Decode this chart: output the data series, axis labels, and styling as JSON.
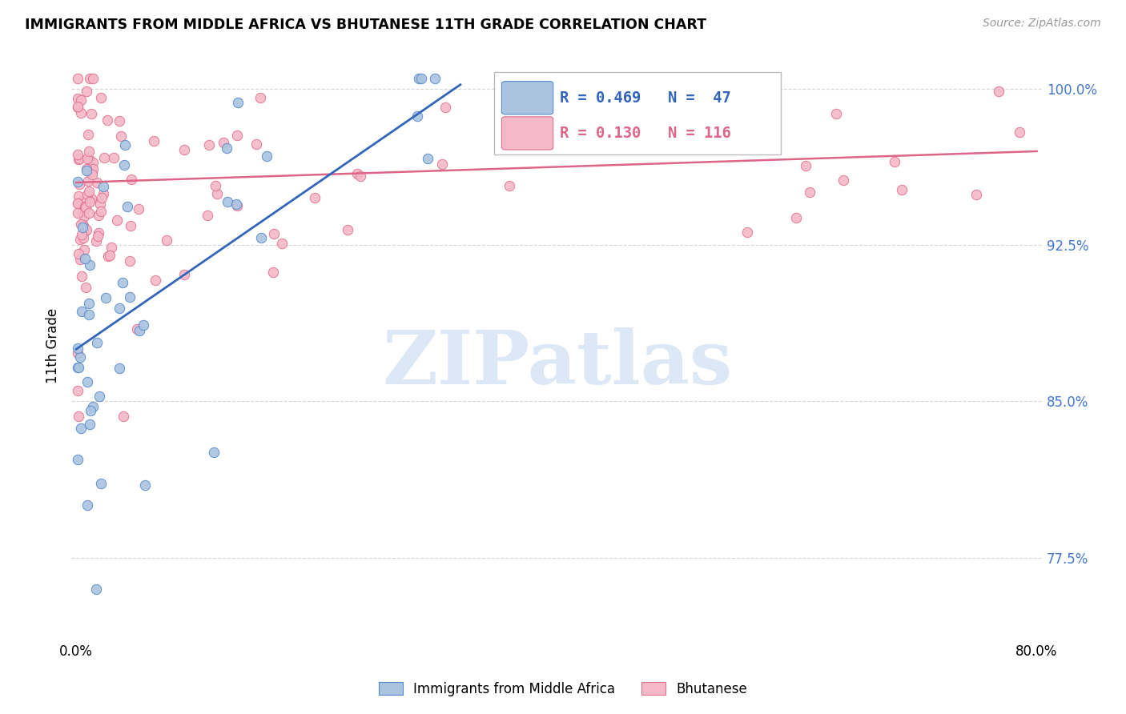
{
  "title": "IMMIGRANTS FROM MIDDLE AFRICA VS BHUTANESE 11TH GRADE CORRELATION CHART",
  "source": "Source: ZipAtlas.com",
  "ylabel": "11th Grade",
  "ytick_vals": [
    0.775,
    0.85,
    0.925,
    1.0
  ],
  "ytick_labels": [
    "77.5%",
    "85.0%",
    "92.5%",
    "100.0%"
  ],
  "xlim": [
    -0.004,
    0.805
  ],
  "ylim": [
    0.735,
    1.018
  ],
  "blue_color": "#aac4e0",
  "pink_color": "#f5b8c8",
  "blue_edge_color": "#5588cc",
  "pink_edge_color": "#e07090",
  "blue_line_color": "#3366bb",
  "pink_line_color": "#dd6688",
  "marker_size": 80,
  "legend_R_blue": "R = 0.469",
  "legend_N_blue": "N =  47",
  "legend_R_pink": "R = 0.130",
  "legend_N_pink": "N = 116",
  "watermark_text": "ZIPatlas",
  "watermark_color": "#dce8f5",
  "grid_color": "#cccccc",
  "ytick_color": "#4477cc",
  "source_color": "#999999"
}
